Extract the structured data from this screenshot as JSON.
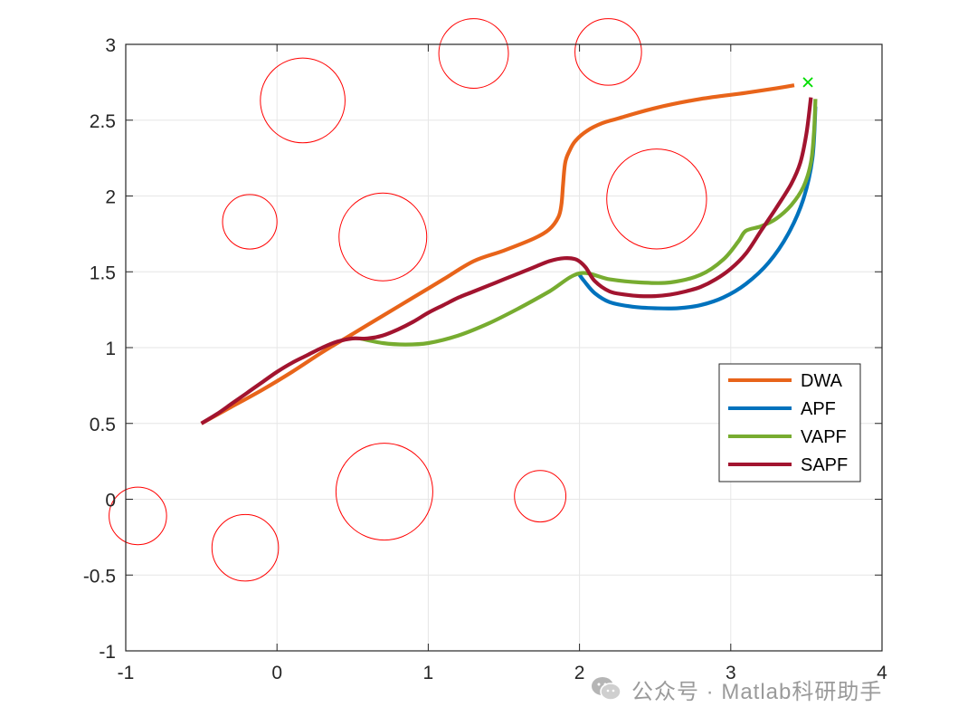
{
  "chart_data": {
    "type": "line",
    "title": "",
    "xlabel": "",
    "ylabel": "",
    "xlim": [
      -1,
      4
    ],
    "ylim": [
      -1,
      3
    ],
    "xticks": [
      "-1",
      "0",
      "1",
      "2",
      "3",
      "4"
    ],
    "yticks": [
      "-1",
      "-0.5",
      "0",
      "0.5",
      "1",
      "1.5",
      "2",
      "2.5",
      "3"
    ],
    "grid": true,
    "legend_position": "right",
    "obstacles": [
      {
        "cx": 0.17,
        "cy": 2.63,
        "r": 0.28
      },
      {
        "cx": 1.3,
        "cy": 2.94,
        "r": 0.23
      },
      {
        "cx": 2.19,
        "cy": 2.95,
        "r": 0.22
      },
      {
        "cx": -0.18,
        "cy": 1.83,
        "r": 0.18
      },
      {
        "cx": 0.7,
        "cy": 1.73,
        "r": 0.29
      },
      {
        "cx": 2.51,
        "cy": 1.98,
        "r": 0.33
      },
      {
        "cx": -0.92,
        "cy": -0.11,
        "r": 0.19
      },
      {
        "cx": -0.21,
        "cy": -0.32,
        "r": 0.22
      },
      {
        "cx": 0.71,
        "cy": 0.05,
        "r": 0.32
      },
      {
        "cx": 1.74,
        "cy": 0.02,
        "r": 0.17
      }
    ],
    "goal": {
      "x": 3.51,
      "y": 2.75,
      "marker": "×",
      "color": "#00dd00"
    },
    "series": [
      {
        "name": "DWA",
        "color": "#e8641a",
        "x": [
          -0.5,
          -0.3,
          -0.1,
          0.1,
          0.3,
          0.5,
          0.7,
          0.9,
          1.1,
          1.3,
          1.5,
          1.7,
          1.8,
          1.86,
          1.88,
          1.89,
          1.9,
          1.91,
          1.93,
          1.97,
          2.05,
          2.15,
          2.25,
          2.5,
          2.8,
          3.1,
          3.3,
          3.42
        ],
        "y": [
          0.5,
          0.61,
          0.72,
          0.84,
          0.97,
          1.09,
          1.21,
          1.33,
          1.45,
          1.57,
          1.64,
          1.72,
          1.78,
          1.86,
          1.94,
          2.06,
          2.18,
          2.24,
          2.29,
          2.36,
          2.43,
          2.48,
          2.51,
          2.58,
          2.64,
          2.68,
          2.71,
          2.73
        ]
      },
      {
        "name": "APF",
        "color": "#0072bd",
        "x": [
          2.0,
          2.03,
          2.1,
          2.2,
          2.35,
          2.5,
          2.65,
          2.8,
          2.95,
          3.1,
          3.25,
          3.38,
          3.48,
          3.54,
          3.56
        ],
        "y": [
          1.48,
          1.44,
          1.36,
          1.3,
          1.27,
          1.26,
          1.26,
          1.28,
          1.33,
          1.42,
          1.56,
          1.75,
          1.98,
          2.25,
          2.59
        ]
      },
      {
        "name": "VAPF",
        "color": "#77ac30",
        "x": [
          0.55,
          0.7,
          0.85,
          1.0,
          1.2,
          1.4,
          1.6,
          1.8,
          2.0,
          2.2,
          2.4,
          2.6,
          2.8,
          2.95,
          3.05,
          3.1,
          3.2,
          3.3,
          3.4,
          3.48,
          3.53,
          3.55,
          3.56
        ],
        "y": [
          1.06,
          1.03,
          1.02,
          1.03,
          1.08,
          1.16,
          1.26,
          1.37,
          1.49,
          1.45,
          1.43,
          1.43,
          1.48,
          1.58,
          1.7,
          1.77,
          1.8,
          1.85,
          1.94,
          2.06,
          2.22,
          2.42,
          2.64
        ]
      },
      {
        "name": "SAPF",
        "color": "#a2142f",
        "x": [
          -0.5,
          -0.4,
          -0.3,
          -0.2,
          -0.1,
          0.0,
          0.1,
          0.2,
          0.3,
          0.4,
          0.5,
          0.6,
          0.7,
          0.8,
          0.9,
          1.0,
          1.1,
          1.2,
          1.3,
          1.4,
          1.5,
          1.6,
          1.7,
          1.8,
          1.9,
          1.98,
          2.04,
          2.1,
          2.2,
          2.3,
          2.4,
          2.5,
          2.6,
          2.7,
          2.8,
          2.9,
          3.0,
          3.1,
          3.2,
          3.3,
          3.4,
          3.46,
          3.5,
          3.53
        ],
        "y": [
          0.5,
          0.56,
          0.63,
          0.7,
          0.77,
          0.84,
          0.9,
          0.95,
          1.0,
          1.04,
          1.06,
          1.06,
          1.08,
          1.12,
          1.17,
          1.23,
          1.28,
          1.33,
          1.37,
          1.41,
          1.45,
          1.49,
          1.53,
          1.57,
          1.59,
          1.58,
          1.53,
          1.44,
          1.37,
          1.35,
          1.34,
          1.34,
          1.35,
          1.37,
          1.4,
          1.45,
          1.52,
          1.62,
          1.77,
          1.92,
          2.08,
          2.22,
          2.41,
          2.65
        ]
      }
    ]
  },
  "watermark": {
    "text": "公众号 · Matlab科研助手",
    "icon": "wechat-icon"
  }
}
